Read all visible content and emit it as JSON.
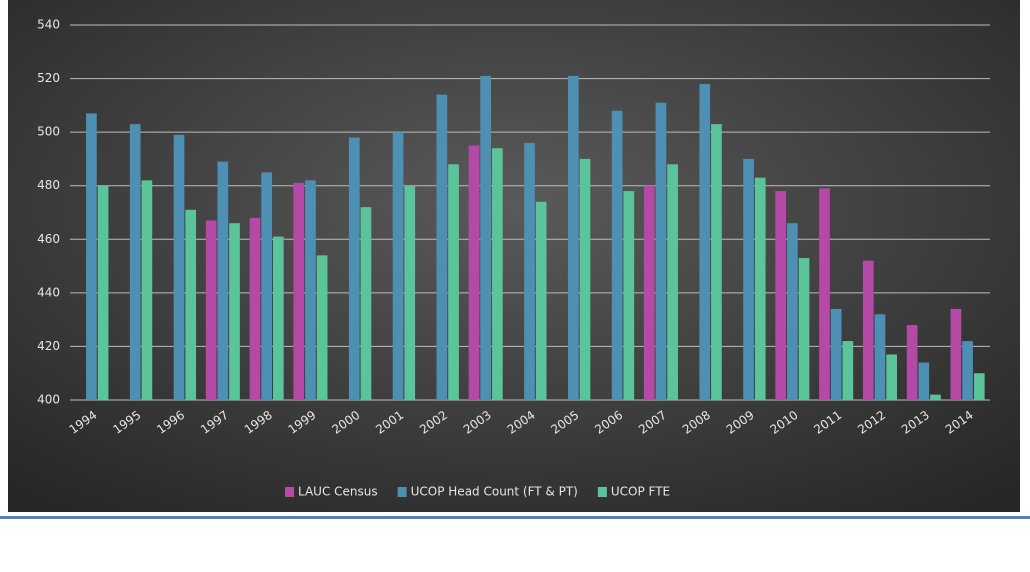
{
  "chart_data": {
    "type": "bar",
    "categories": [
      "1994",
      "1995",
      "1996",
      "1997",
      "1998",
      "1999",
      "2000",
      "2001",
      "2002",
      "2003",
      "2004",
      "2005",
      "2006",
      "2007",
      "2008",
      "2009",
      "2010",
      "2011",
      "2012",
      "2013",
      "2014"
    ],
    "series": [
      {
        "name": "LAUC Census",
        "color": "#b44aa6",
        "values": [
          null,
          null,
          null,
          467,
          468,
          481,
          null,
          null,
          null,
          495,
          null,
          null,
          null,
          480,
          null,
          null,
          478,
          479,
          452,
          428,
          434
        ]
      },
      {
        "name": "UCOP Head Count (FT & PT)",
        "color": "#4d90b4",
        "values": [
          507,
          503,
          499,
          489,
          485,
          482,
          498,
          500,
          514,
          521,
          496,
          521,
          508,
          511,
          518,
          490,
          466,
          434,
          432,
          414,
          422
        ]
      },
      {
        "name": "UCOP FTE",
        "color": "#5cc49a",
        "values": [
          480,
          482,
          471,
          466,
          461,
          454,
          472,
          480,
          488,
          494,
          474,
          490,
          478,
          488,
          503,
          483,
          453,
          422,
          417,
          402,
          410
        ]
      }
    ],
    "ylim": [
      400,
      540
    ],
    "yticks": [
      400,
      420,
      440,
      460,
      480,
      500,
      520,
      540
    ],
    "grid": true
  }
}
